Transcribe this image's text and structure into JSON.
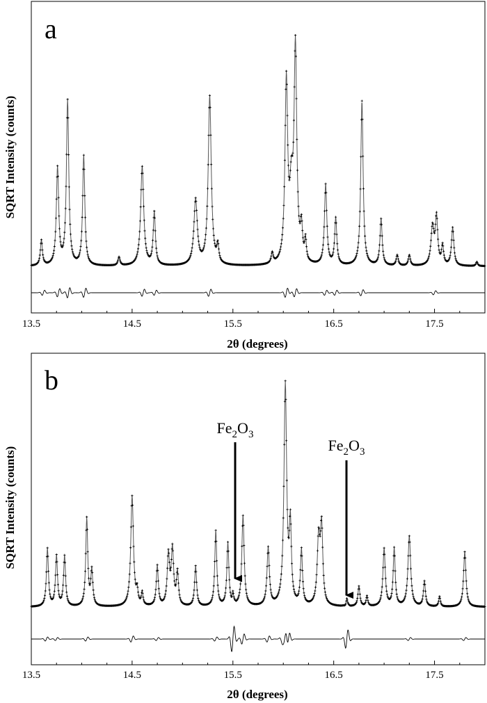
{
  "chart_data": [
    {
      "type": "line",
      "panel_label": "a",
      "xlabel": "2θ (degrees)",
      "ylabel": "SQRT Intensity (counts)",
      "xlim": [
        13.5,
        18.0
      ],
      "xticks": [
        "13.5",
        "14.5",
        "15.5",
        "16.5",
        "17.5"
      ],
      "xtick_values": [
        13.5,
        14.5,
        15.5,
        16.5,
        17.5
      ],
      "grid": false,
      "baseline": 0.17,
      "peaks": [
        [
          13.6,
          0.12,
          0.012
        ],
        [
          13.76,
          0.46,
          0.014
        ],
        [
          13.86,
          0.78,
          0.014
        ],
        [
          14.02,
          0.52,
          0.013
        ],
        [
          14.37,
          0.04,
          0.012
        ],
        [
          14.6,
          0.47,
          0.018
        ],
        [
          14.72,
          0.25,
          0.013
        ],
        [
          15.13,
          0.31,
          0.02
        ],
        [
          15.27,
          0.8,
          0.018
        ],
        [
          15.35,
          0.08,
          0.012
        ],
        [
          15.89,
          0.05,
          0.012
        ],
        [
          16.03,
          0.85,
          0.016
        ],
        [
          16.08,
          0.3,
          0.02
        ],
        [
          16.12,
          1.0,
          0.016
        ],
        [
          16.18,
          0.15,
          0.012
        ],
        [
          16.22,
          0.1,
          0.01
        ],
        [
          16.42,
          0.38,
          0.014
        ],
        [
          16.52,
          0.22,
          0.013
        ],
        [
          16.78,
          0.78,
          0.014
        ],
        [
          16.97,
          0.22,
          0.013
        ],
        [
          17.13,
          0.05,
          0.012
        ],
        [
          17.25,
          0.05,
          0.012
        ],
        [
          17.48,
          0.18,
          0.018
        ],
        [
          17.52,
          0.22,
          0.014
        ],
        [
          17.58,
          0.09,
          0.012
        ],
        [
          17.68,
          0.18,
          0.014
        ],
        [
          17.92,
          0.02,
          0.01
        ]
      ],
      "residual_ripples": [
        [
          13.62,
          0.05
        ],
        [
          13.77,
          0.08
        ],
        [
          13.87,
          0.1
        ],
        [
          14.03,
          0.09
        ],
        [
          14.61,
          0.07
        ],
        [
          14.73,
          0.05
        ],
        [
          15.27,
          0.07
        ],
        [
          16.03,
          0.09
        ],
        [
          16.12,
          0.08
        ],
        [
          16.42,
          0.05
        ],
        [
          16.52,
          0.05
        ],
        [
          16.78,
          0.06
        ],
        [
          17.5,
          0.04
        ]
      ]
    },
    {
      "type": "line",
      "panel_label": "b",
      "xlabel": "2θ (degrees)",
      "ylabel": "SQRT Intensity (counts)",
      "xlim": [
        13.5,
        18.0
      ],
      "xticks": [
        "13.5",
        "14.5",
        "15.5",
        "16.5",
        "17.5"
      ],
      "xtick_values": [
        13.5,
        14.5,
        15.5,
        16.5,
        17.5
      ],
      "grid": false,
      "baseline": 0.08,
      "peaks": [
        [
          13.66,
          0.23,
          0.012
        ],
        [
          13.75,
          0.2,
          0.012
        ],
        [
          13.83,
          0.2,
          0.012
        ],
        [
          14.05,
          0.35,
          0.012
        ],
        [
          14.1,
          0.14,
          0.012
        ],
        [
          14.5,
          0.44,
          0.016
        ],
        [
          14.55,
          0.05,
          0.01
        ],
        [
          14.6,
          0.05,
          0.01
        ],
        [
          14.75,
          0.16,
          0.012
        ],
        [
          14.86,
          0.2,
          0.014
        ],
        [
          14.9,
          0.22,
          0.014
        ],
        [
          14.95,
          0.13,
          0.012
        ],
        [
          15.13,
          0.16,
          0.012
        ],
        [
          15.33,
          0.3,
          0.012
        ],
        [
          15.45,
          0.25,
          0.012
        ],
        [
          15.5,
          0.04,
          0.008
        ],
        [
          15.6,
          0.36,
          0.014
        ],
        [
          15.85,
          0.23,
          0.014
        ],
        [
          16.02,
          0.88,
          0.016
        ],
        [
          16.07,
          0.3,
          0.012
        ],
        [
          16.18,
          0.22,
          0.012
        ],
        [
          16.35,
          0.26,
          0.016
        ],
        [
          16.38,
          0.3,
          0.014
        ],
        [
          16.63,
          0.03,
          0.008
        ],
        [
          16.75,
          0.08,
          0.012
        ],
        [
          16.83,
          0.04,
          0.01
        ],
        [
          17.0,
          0.23,
          0.014
        ],
        [
          17.1,
          0.23,
          0.012
        ],
        [
          17.25,
          0.28,
          0.016
        ],
        [
          17.4,
          0.1,
          0.012
        ],
        [
          17.55,
          0.04,
          0.01
        ],
        [
          17.8,
          0.22,
          0.014
        ]
      ],
      "residual_ripples": [
        [
          13.65,
          0.04
        ],
        [
          13.75,
          0.03
        ],
        [
          14.05,
          0.04
        ],
        [
          14.5,
          0.06
        ],
        [
          14.75,
          0.03
        ],
        [
          15.33,
          0.04
        ],
        [
          15.5,
          0.25
        ],
        [
          15.6,
          0.1
        ],
        [
          15.85,
          0.06
        ],
        [
          16.0,
          0.12
        ],
        [
          16.02,
          0.18
        ],
        [
          16.05,
          0.14
        ],
        [
          16.63,
          0.18
        ],
        [
          17.25,
          0.03
        ],
        [
          17.8,
          0.03
        ]
      ],
      "annotations": [
        {
          "text_main": "Fe",
          "sub1": "2",
          "mid": "O",
          "sub2": "3",
          "x": 15.5
        },
        {
          "text_main": "Fe",
          "sub1": "2",
          "mid": "O",
          "sub2": "3",
          "x": 16.63
        }
      ]
    }
  ]
}
